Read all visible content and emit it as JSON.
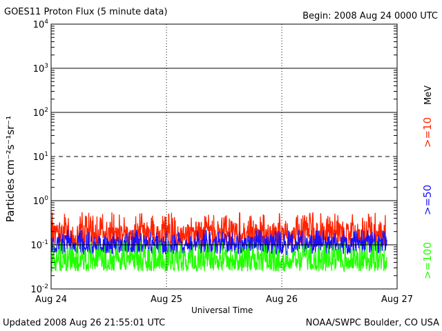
{
  "chart_data": {
    "type": "line",
    "title": "GOES11 Proton Flux (5 minute data)",
    "begin_label": "Begin: 2008 Aug 24 0000 UTC",
    "xlabel": "Universal Time",
    "ylabel": "Particles cm⁻²s⁻¹sr⁻¹",
    "x_tick_labels": [
      "Aug 24",
      "Aug 25",
      "Aug 26",
      "Aug 27"
    ],
    "xlim_days": [
      0,
      3
    ],
    "x_data_end_day": 2.91,
    "ylim_log10": [
      -2,
      4
    ],
    "y_ticks": [
      {
        "base": "10",
        "exp": "4"
      },
      {
        "base": "10",
        "exp": "3"
      },
      {
        "base": "10",
        "exp": "2"
      },
      {
        "base": "10",
        "exp": "1"
      },
      {
        "base": "10",
        "exp": "0"
      },
      {
        "base": "10",
        "exp": "-1"
      },
      {
        "base": "10",
        "exp": "-2"
      }
    ],
    "unit_label": "MeV",
    "series": [
      {
        "name": ">=10",
        "color": "#ff2200",
        "typical": 0.18,
        "min": 0.09,
        "max": 0.55
      },
      {
        "name": ">=50",
        "color": "#1a10ff",
        "typical": 0.1,
        "min": 0.06,
        "max": 0.22
      },
      {
        "name": ">=100",
        "color": "#22ff00",
        "typical": 0.045,
        "min": 0.025,
        "max": 0.12
      }
    ]
  },
  "footer": {
    "updated": "Updated 2008 Aug 26 21:55:01 UTC",
    "source": "NOAA/SWPC Boulder, CO USA"
  }
}
